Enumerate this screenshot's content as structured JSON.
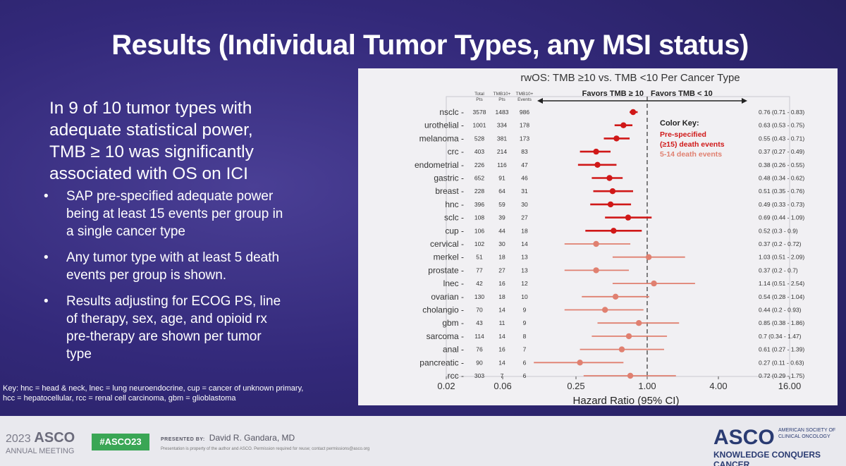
{
  "slide": {
    "title": "Results (Individual Tumor Types, any MSI status)",
    "lead_lines": [
      "In 9 of 10 tumor types with",
      "adequate statistical power,",
      "TMB ≥ 10 was significantly",
      "associated with OS on ICI"
    ],
    "bullet_symbol": "•",
    "bullets": [
      {
        "lines": [
          "SAP pre-specified adequate power",
          "being at least 15 events per group in",
          "a single cancer type"
        ]
      },
      {
        "lines": [
          "Any tumor type with at least 5 death",
          "events per group is shown."
        ]
      },
      {
        "lines": [
          "Results adjusting for ECOG PS, line",
          "of therapy, sex, age, and opioid rx",
          "pre-therapy are shown per tumor",
          "type"
        ]
      }
    ],
    "key_lines": [
      "Key: hnc = head & neck, lnec = lung neuroendocrine, cup = cancer of unknown primary,",
      "hcc = hepatocellular, rcc = renal cell carcinoma, gbm = glioblastoma"
    ]
  },
  "footer": {
    "year": "2023",
    "asco": "ASCO",
    "annual": "ANNUAL MEETING",
    "hashtag": "#ASCO23",
    "presented_by_label": "PRESENTED BY:",
    "presenter": "David R. Gandara, MD",
    "note": "Presentation is property of the author and ASCO. Permission required for reuse; contact permissions@asco.org",
    "logo": "ASCO",
    "society": "AMERICAN SOCIETY OF CLINICAL ONCOLOGY",
    "tagline": "KNOWLEDGE CONQUERS CANCER"
  },
  "chart_data": {
    "type": "forest",
    "title": "rwOS: TMB ≥10 vs. TMB <10 Per Cancer Type",
    "favors_left": "Favors TMB ≥ 10",
    "favors_right": "Favors TMB < 10",
    "column_headers": [
      [
        "Total",
        "Pts"
      ],
      [
        "TMB10+",
        "Pts"
      ],
      [
        "TMB10+",
        "Events"
      ]
    ],
    "xlabel": "Hazard Ratio (95% CI)",
    "x_scale": "log",
    "xlim": [
      0.02,
      16
    ],
    "x_ticks": [
      0.02,
      0.06,
      0.25,
      1.0,
      4.0,
      16.0
    ],
    "x_tick_labels": [
      "0.02",
      "0.06",
      "0.25",
      "1.00",
      "4.00",
      "16.00"
    ],
    "reference_line": 1.0,
    "legend": {
      "title": "Color Key:",
      "items": [
        {
          "label_lines": [
            "Pre-specified",
            "(≥15) death events"
          ],
          "color": "#d01818"
        },
        {
          "label_lines": [
            "5-14 death events"
          ],
          "color": "#e08070"
        }
      ]
    },
    "colors": {
      "prespecified": "#d01818",
      "other": "#e08070"
    },
    "rows": [
      {
        "label": "nsclc",
        "total": "3578",
        "tmb_pts": "1483",
        "events": "986",
        "hr": 0.76,
        "lo": 0.71,
        "hi": 0.83,
        "ci_text": "0.76 (0.71 - 0.83)",
        "group": "prespecified"
      },
      {
        "label": "urothelial",
        "total": "1001",
        "tmb_pts": "334",
        "events": "178",
        "hr": 0.63,
        "lo": 0.53,
        "hi": 0.75,
        "ci_text": "0.63 (0.53 - 0.75)",
        "group": "prespecified"
      },
      {
        "label": "melanoma",
        "total": "528",
        "tmb_pts": "381",
        "events": "173",
        "hr": 0.55,
        "lo": 0.43,
        "hi": 0.71,
        "ci_text": "0.55 (0.43 - 0.71)",
        "group": "prespecified"
      },
      {
        "label": "crc",
        "total": "403",
        "tmb_pts": "214",
        "events": "83",
        "hr": 0.37,
        "lo": 0.27,
        "hi": 0.49,
        "ci_text": "0.37 (0.27 - 0.49)",
        "group": "prespecified"
      },
      {
        "label": "endometrial",
        "total": "226",
        "tmb_pts": "116",
        "events": "47",
        "hr": 0.38,
        "lo": 0.26,
        "hi": 0.55,
        "ci_text": "0.38 (0.26 - 0.55)",
        "group": "prespecified"
      },
      {
        "label": "gastric",
        "total": "652",
        "tmb_pts": "91",
        "events": "46",
        "hr": 0.48,
        "lo": 0.34,
        "hi": 0.62,
        "ci_text": "0.48 (0.34 - 0.62)",
        "group": "prespecified"
      },
      {
        "label": "breast",
        "total": "228",
        "tmb_pts": "64",
        "events": "31",
        "hr": 0.51,
        "lo": 0.35,
        "hi": 0.76,
        "ci_text": "0.51 (0.35 - 0.76)",
        "group": "prespecified"
      },
      {
        "label": "hnc",
        "total": "396",
        "tmb_pts": "59",
        "events": "30",
        "hr": 0.49,
        "lo": 0.33,
        "hi": 0.73,
        "ci_text": "0.49 (0.33 - 0.73)",
        "group": "prespecified"
      },
      {
        "label": "sclc",
        "total": "108",
        "tmb_pts": "39",
        "events": "27",
        "hr": 0.69,
        "lo": 0.44,
        "hi": 1.09,
        "ci_text": "0.69 (0.44 - 1.09)",
        "group": "prespecified"
      },
      {
        "label": "cup",
        "total": "106",
        "tmb_pts": "44",
        "events": "18",
        "hr": 0.52,
        "lo": 0.3,
        "hi": 0.9,
        "ci_text": "0.52 (0.3 - 0.9)",
        "group": "prespecified"
      },
      {
        "label": "cervical",
        "total": "102",
        "tmb_pts": "30",
        "events": "14",
        "hr": 0.37,
        "lo": 0.2,
        "hi": 0.72,
        "ci_text": "0.37 (0.2 - 0.72)",
        "group": "other"
      },
      {
        "label": "merkel",
        "total": "51",
        "tmb_pts": "18",
        "events": "13",
        "hr": 1.03,
        "lo": 0.51,
        "hi": 2.09,
        "ci_text": "1.03 (0.51 - 2.09)",
        "group": "other"
      },
      {
        "label": "prostate",
        "total": "77",
        "tmb_pts": "27",
        "events": "13",
        "hr": 0.37,
        "lo": 0.2,
        "hi": 0.7,
        "ci_text": "0.37 (0.2 - 0.7)",
        "group": "other"
      },
      {
        "label": "lnec",
        "total": "42",
        "tmb_pts": "16",
        "events": "12",
        "hr": 1.14,
        "lo": 0.51,
        "hi": 2.54,
        "ci_text": "1.14 (0.51 - 2.54)",
        "group": "other"
      },
      {
        "label": "ovarian",
        "total": "130",
        "tmb_pts": "18",
        "events": "10",
        "hr": 0.54,
        "lo": 0.28,
        "hi": 1.04,
        "ci_text": "0.54 (0.28 - 1.04)",
        "group": "other"
      },
      {
        "label": "cholangio",
        "total": "70",
        "tmb_pts": "14",
        "events": "9",
        "hr": 0.44,
        "lo": 0.2,
        "hi": 0.93,
        "ci_text": "0.44 (0.2 - 0.93)",
        "group": "other"
      },
      {
        "label": "gbm",
        "total": "43",
        "tmb_pts": "11",
        "events": "9",
        "hr": 0.85,
        "lo": 0.38,
        "hi": 1.86,
        "ci_text": "0.85 (0.38 - 1.86)",
        "group": "other"
      },
      {
        "label": "sarcoma",
        "total": "114",
        "tmb_pts": "14",
        "events": "8",
        "hr": 0.7,
        "lo": 0.34,
        "hi": 1.47,
        "ci_text": "0.7 (0.34 - 1.47)",
        "group": "other"
      },
      {
        "label": "anal",
        "total": "76",
        "tmb_pts": "16",
        "events": "7",
        "hr": 0.61,
        "lo": 0.27,
        "hi": 1.39,
        "ci_text": "0.61 (0.27 - 1.39)",
        "group": "other"
      },
      {
        "label": "pancreatic",
        "total": "90",
        "tmb_pts": "14",
        "events": "6",
        "hr": 0.27,
        "lo": 0.11,
        "hi": 0.63,
        "ci_text": "0.27 (0.11 - 0.63)",
        "group": "other"
      },
      {
        "label": "rcc",
        "total": "303",
        "tmb_pts": "7",
        "events": "6",
        "hr": 0.72,
        "lo": 0.29,
        "hi": 1.75,
        "ci_text": "0.72 (0.29 - 1.75)",
        "group": "other"
      }
    ]
  }
}
